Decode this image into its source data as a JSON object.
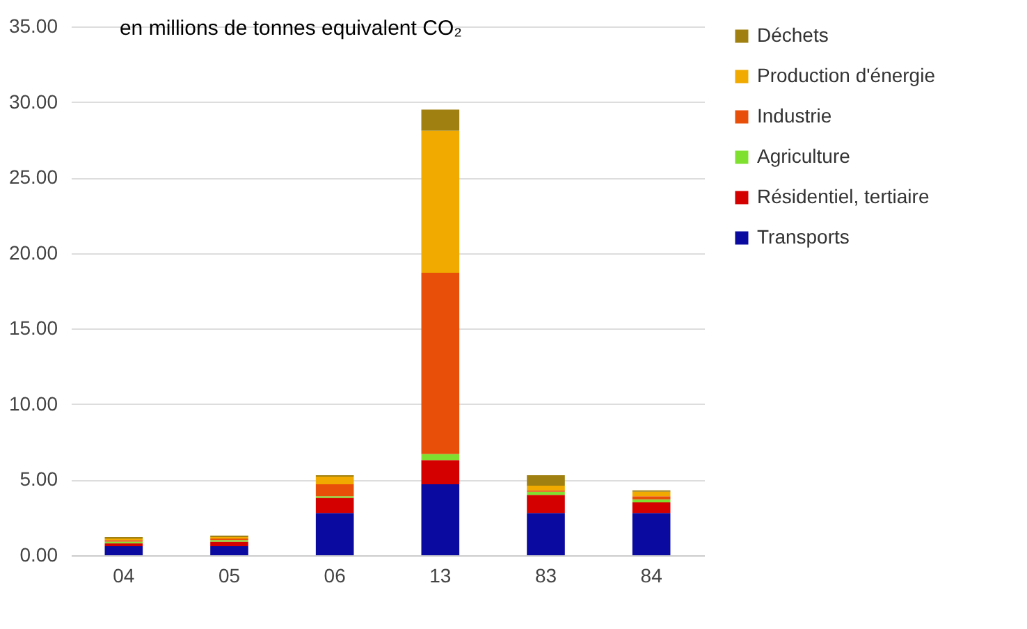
{
  "chart_data": {
    "type": "bar",
    "stacked": true,
    "title": "en millions de tonnes equivalent CO₂",
    "categories": [
      "04",
      "05",
      "06",
      "13",
      "83",
      "84"
    ],
    "series": [
      {
        "name": "Transports",
        "color": "#0a0aa0",
        "values": [
          0.6,
          0.6,
          2.8,
          4.7,
          2.8,
          2.8
        ]
      },
      {
        "name": "Résidentiel, tertiaire",
        "color": "#d40000",
        "values": [
          0.2,
          0.3,
          1.0,
          1.6,
          1.2,
          0.7
        ]
      },
      {
        "name": "Agriculture",
        "color": "#80e030",
        "values": [
          0.1,
          0.1,
          0.1,
          0.4,
          0.2,
          0.2
        ]
      },
      {
        "name": "Industrie",
        "color": "#e8500a",
        "values": [
          0.1,
          0.1,
          0.8,
          12.0,
          0.1,
          0.2
        ]
      },
      {
        "name": "Production d'énergie",
        "color": "#f0aa00",
        "values": [
          0.1,
          0.1,
          0.5,
          9.4,
          0.3,
          0.3
        ]
      },
      {
        "name": "Déchets",
        "color": "#a08010",
        "values": [
          0.1,
          0.1,
          0.1,
          1.4,
          0.7,
          0.1
        ]
      }
    ],
    "ylim": [
      0,
      35
    ],
    "yticks": [
      {
        "value": 0,
        "label": "0.00"
      },
      {
        "value": 5,
        "label": "5.00"
      },
      {
        "value": 10,
        "label": "10.00"
      },
      {
        "value": 15,
        "label": "15.00"
      },
      {
        "value": 20,
        "label": "20.00"
      },
      {
        "value": 25,
        "label": "25.00"
      },
      {
        "value": 30,
        "label": "30.00"
      },
      {
        "value": 35,
        "label": "35.00"
      }
    ],
    "grid": "y",
    "legend": "right"
  }
}
